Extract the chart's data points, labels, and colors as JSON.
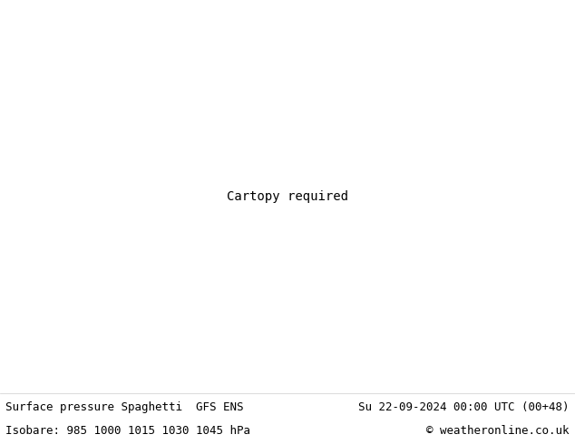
{
  "title_left": "Surface pressure Spaghetti  GFS ENS",
  "title_right": "Su 22-09-2024 00:00 UTC (00+48)",
  "subtitle_left": "Isobare: 985 1000 1015 1030 1045 hPa",
  "subtitle_right": "© weatheronline.co.uk",
  "bg_color": "#ffffff",
  "map_land_color": "#c8f0c8",
  "map_ocean_color": "#ffffff",
  "border_color": "#888888",
  "text_color": "#000000",
  "font_size_title": 9,
  "font_size_subtitle": 9,
  "font_family": "monospace",
  "lon_min": -170,
  "lon_max": 10,
  "lat_min": 15,
  "lat_max": 85,
  "ensemble_colors": [
    "#ff00ff",
    "#00cccc",
    "#ff0000",
    "#0000ff",
    "#888800",
    "#ff8800",
    "#8800ff",
    "#00aa44",
    "#ff0088",
    "#aaaa00",
    "#0088ff",
    "#cc4400",
    "#004400",
    "#4444ff",
    "#ffcc00",
    "#cc44cc",
    "#44cccc",
    "#884400",
    "#004488",
    "#448844",
    "#ff6600",
    "#6600ff",
    "#00ff66",
    "#660000",
    "#000066",
    "#006600",
    "#888800",
    "#008888",
    "#880088",
    "#555555",
    "#999900",
    "#009999",
    "#990099",
    "#cc0000",
    "#00cc00",
    "#0000cc",
    "#cc6600",
    "#66cc00",
    "#0066cc",
    "#cc0066",
    "#ff9999",
    "#99ff99",
    "#9999ff",
    "#ffcc99",
    "#99ffcc",
    "#cc99ff",
    "#ff99cc",
    "#99ccff",
    "#aaaaaa",
    "#444444"
  ]
}
